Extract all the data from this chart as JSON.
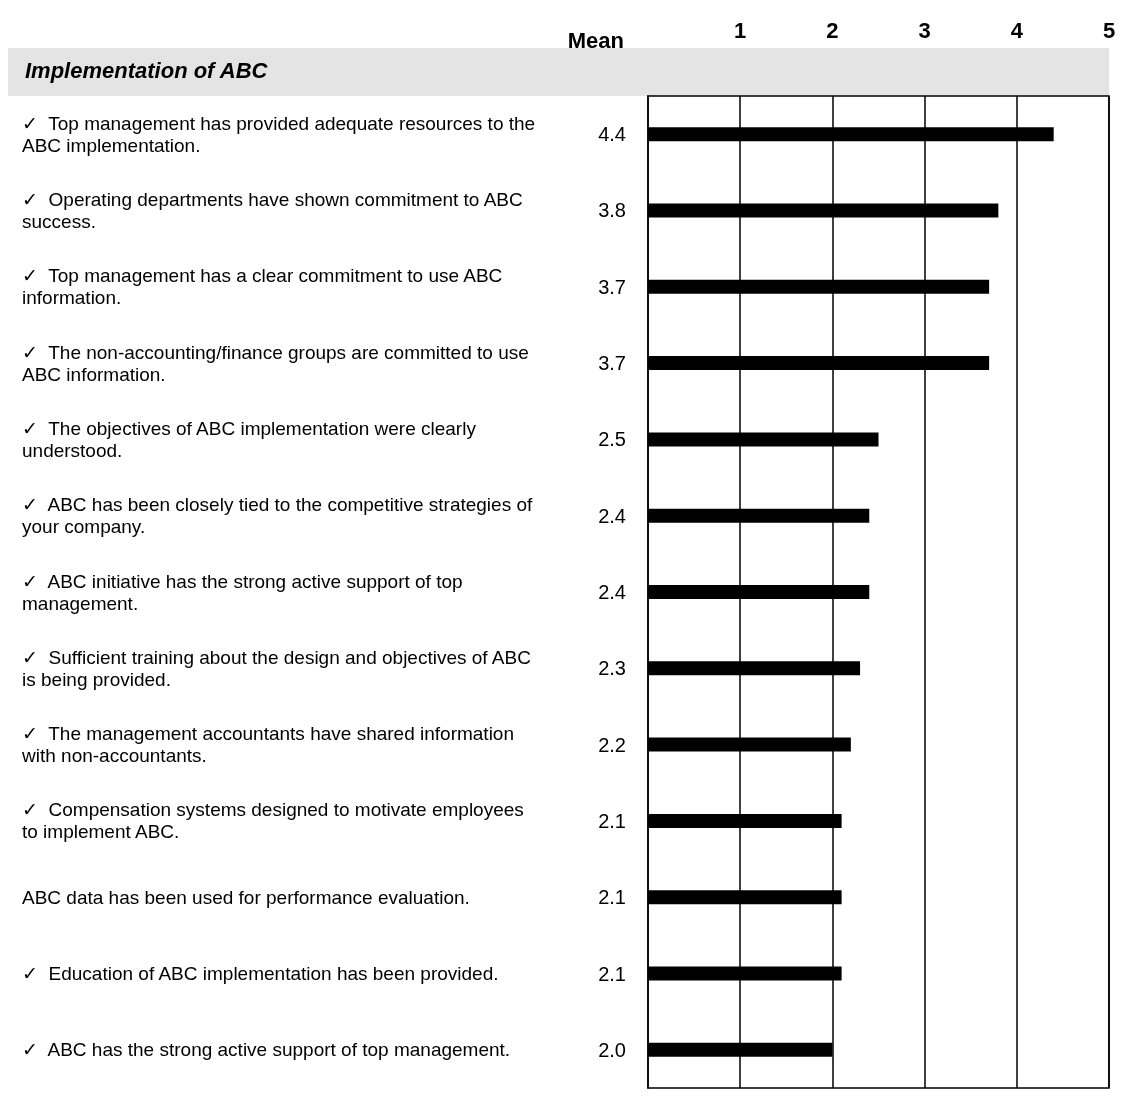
{
  "chart_data": {
    "type": "bar",
    "orientation": "horizontal",
    "title": "Implementation of ABC",
    "xlabel": "Mean",
    "categories": [
      "✓  Top management has provided adequate resources to the ABC implementation.",
      "✓  Operating departments have shown commitment to ABC success.",
      "✓  Top management has a clear commitment to use ABC information.",
      "✓  The non-accounting/finance groups are committed to use ABC information.",
      "✓  The objectives of ABC implementation were clearly understood.",
      "✓  ABC has been closely tied to the competitive strategies of your company.",
      "✓  ABC initiative has the strong active support of top management.",
      "✓  Sufficient training about the design and objectives of ABC is being provided.",
      "✓  The management accountants have shared information with non-accountants.",
      "✓  Compensation systems designed to motivate employees to implement ABC.",
      "ABC data has been used for performance evaluation.",
      "✓  Education of ABC implementation has been provided.",
      "✓  ABC has the strong active support of top management."
    ],
    "values": [
      4.4,
      3.8,
      3.7,
      3.7,
      2.5,
      2.4,
      2.4,
      2.3,
      2.2,
      2.1,
      2.1,
      2.1,
      2.0
    ],
    "value_labels": [
      "4.4",
      "3.8",
      "3.7",
      "3.7",
      "2.5",
      "2.4",
      "2.4",
      "2.3",
      "2.2",
      "2.1",
      "2.1",
      "2.1",
      "2.0"
    ],
    "color": "#000000",
    "xlim": [
      0,
      5
    ],
    "xticks": [
      1,
      2,
      3,
      4,
      5
    ],
    "grid": "x"
  }
}
